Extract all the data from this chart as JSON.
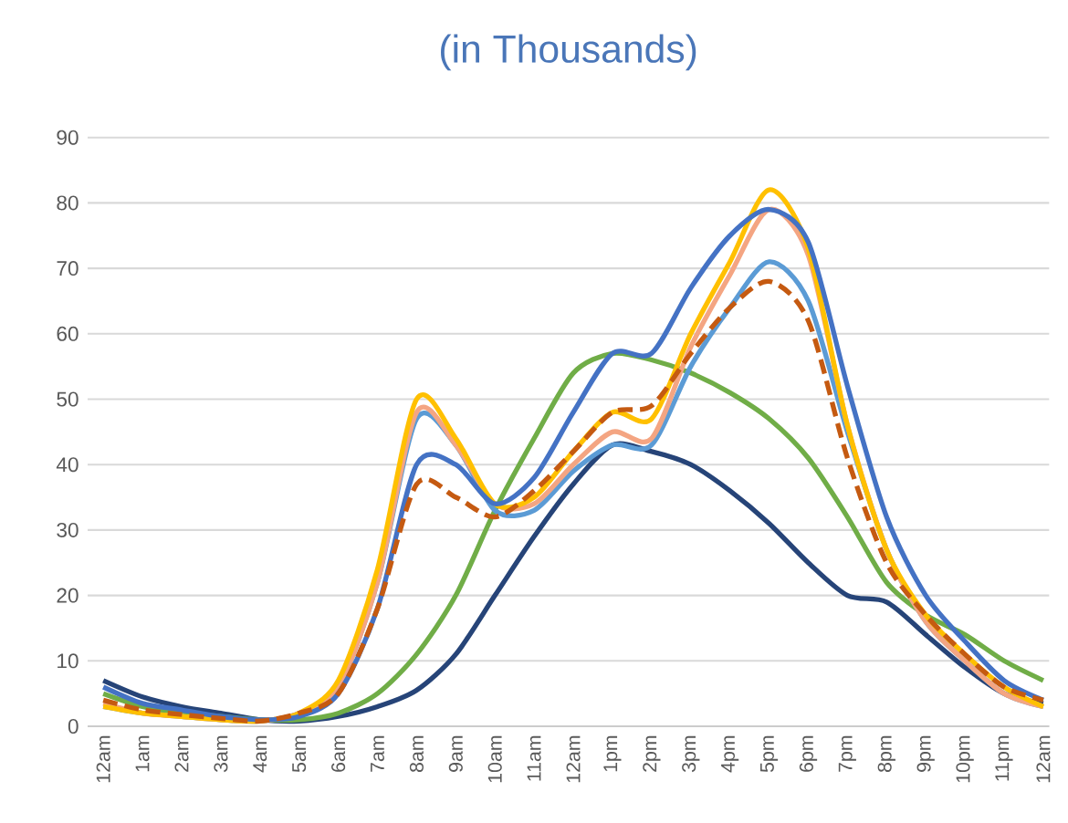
{
  "chart_data": {
    "type": "line",
    "title": "(in Thousands)",
    "categories": [
      "12am",
      "1am",
      "2am",
      "3am",
      "4am",
      "5am",
      "6am",
      "7am",
      "8am",
      "9am",
      "10am",
      "11am",
      "12am",
      "1pm",
      "2pm",
      "3pm",
      "4pm",
      "5pm",
      "6pm",
      "7pm",
      "8pm",
      "9pm",
      "10pm",
      "11pm",
      "12am"
    ],
    "ylim": [
      0,
      90
    ],
    "yticks": [
      0,
      10,
      20,
      30,
      40,
      50,
      60,
      70,
      80,
      90
    ],
    "grid": "y",
    "series": [
      {
        "color": "#264478",
        "values": [
          7,
          4.5,
          3,
          2,
          1,
          0.8,
          1.5,
          3,
          5.5,
          11,
          20,
          29,
          37,
          43,
          42,
          40,
          36,
          31,
          25,
          20,
          19,
          14,
          9,
          5,
          3.5
        ]
      },
      {
        "color": "#70ad47",
        "values": [
          5,
          3,
          2,
          1.5,
          1,
          1,
          2,
          5,
          11,
          20,
          33,
          44,
          54,
          57,
          56,
          54,
          51,
          47,
          41,
          32,
          22,
          17,
          14,
          10,
          7
        ]
      },
      {
        "color": "#5b9bd5",
        "values": [
          3,
          2,
          1.5,
          1,
          0.8,
          2,
          6,
          22,
          47,
          43,
          33,
          33,
          39,
          43,
          43,
          55,
          64,
          71,
          65,
          45,
          27,
          16,
          10,
          5,
          3
        ]
      },
      {
        "color": "#f4a582",
        "values": [
          3.5,
          2,
          1.5,
          1,
          0.8,
          2,
          6,
          22,
          48,
          43,
          34,
          34,
          40,
          45,
          44,
          58,
          69,
          79,
          72,
          46,
          27,
          16,
          10,
          5,
          3
        ]
      },
      {
        "color": "#ffc000",
        "values": [
          3,
          2,
          1.5,
          1,
          0.8,
          2,
          7,
          24,
          50,
          44,
          34,
          35,
          42,
          48,
          47,
          60,
          71,
          82,
          73,
          46,
          27,
          17,
          11,
          6,
          3
        ]
      },
      {
        "color": "#4472c4",
        "values": [
          6,
          3.5,
          2.5,
          1.5,
          1,
          1.5,
          5,
          18,
          40,
          40,
          34,
          38,
          48,
          57,
          57,
          67,
          75,
          79,
          74,
          52,
          32,
          20,
          13,
          7,
          4
        ]
      },
      {
        "color": "#c55a11",
        "line_style": "dashed",
        "values": [
          4,
          2.5,
          1.8,
          1.2,
          0.8,
          2,
          5,
          18,
          37,
          35,
          32,
          36,
          42,
          48,
          49,
          57,
          64,
          68,
          62,
          41,
          25,
          17,
          11,
          6,
          4
        ]
      }
    ]
  }
}
